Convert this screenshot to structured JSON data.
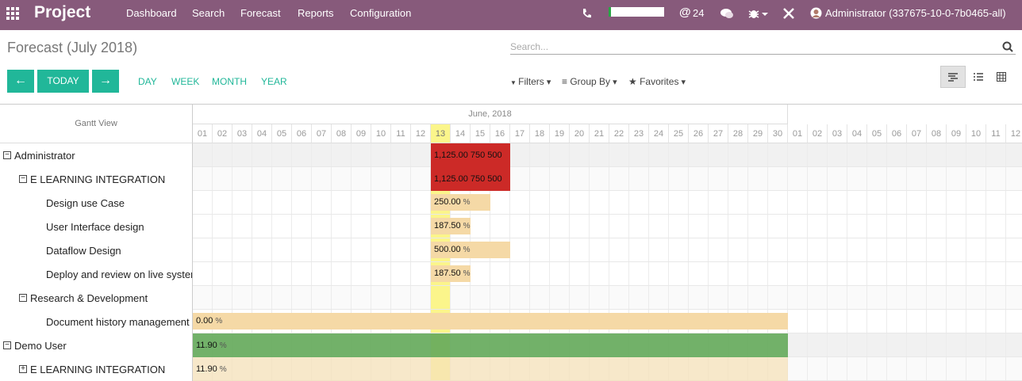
{
  "navbar": {
    "app": "Project",
    "menu": [
      "Dashboard",
      "Search",
      "Forecast",
      "Reports",
      "Configuration"
    ],
    "messages": "24",
    "user": "Administrator (337675-10-0-7b0465-all)"
  },
  "control_panel": {
    "title": "Forecast (July 2018)",
    "search_placeholder": "Search...",
    "today": "TODAY",
    "scales": [
      "DAY",
      "WEEK",
      "MONTH",
      "YEAR"
    ],
    "search_options": [
      "Filters",
      "Group By",
      "Favorites"
    ]
  },
  "gantt": {
    "corner": "Gantt View",
    "month": "June, 2018",
    "days": [
      "01",
      "02",
      "03",
      "04",
      "05",
      "06",
      "07",
      "08",
      "09",
      "10",
      "11",
      "12",
      "13",
      "14",
      "15",
      "16",
      "17",
      "18",
      "19",
      "20",
      "21",
      "22",
      "23",
      "24",
      "25",
      "26",
      "27",
      "28",
      "29",
      "30",
      "01",
      "02",
      "03",
      "04",
      "05",
      "06",
      "07",
      "08",
      "09",
      "10",
      "11",
      "12"
    ],
    "rows": [
      {
        "label": "Administrator",
        "bar": "1,125.00 750 500"
      },
      {
        "label": "E LEARNING INTEGRATION",
        "bar": "1,125.00 750 500"
      },
      {
        "label": "Design use Case",
        "bar": "250.00",
        "unit": "%"
      },
      {
        "label": "User Interface design",
        "bar": "187.50",
        "unit": "%"
      },
      {
        "label": "Dataflow Design",
        "bar": "500.00",
        "unit": "%"
      },
      {
        "label": "Deploy and review on live system",
        "bar": "187.50",
        "unit": "%"
      },
      {
        "label": "Research & Development"
      },
      {
        "label": "Document history management",
        "bar": "0.00",
        "unit": "%"
      },
      {
        "label": "Demo User",
        "bar": "11.90",
        "unit": "%"
      },
      {
        "label": "E LEARNING INTEGRATION",
        "bar": "11.90",
        "unit": "%"
      }
    ]
  }
}
